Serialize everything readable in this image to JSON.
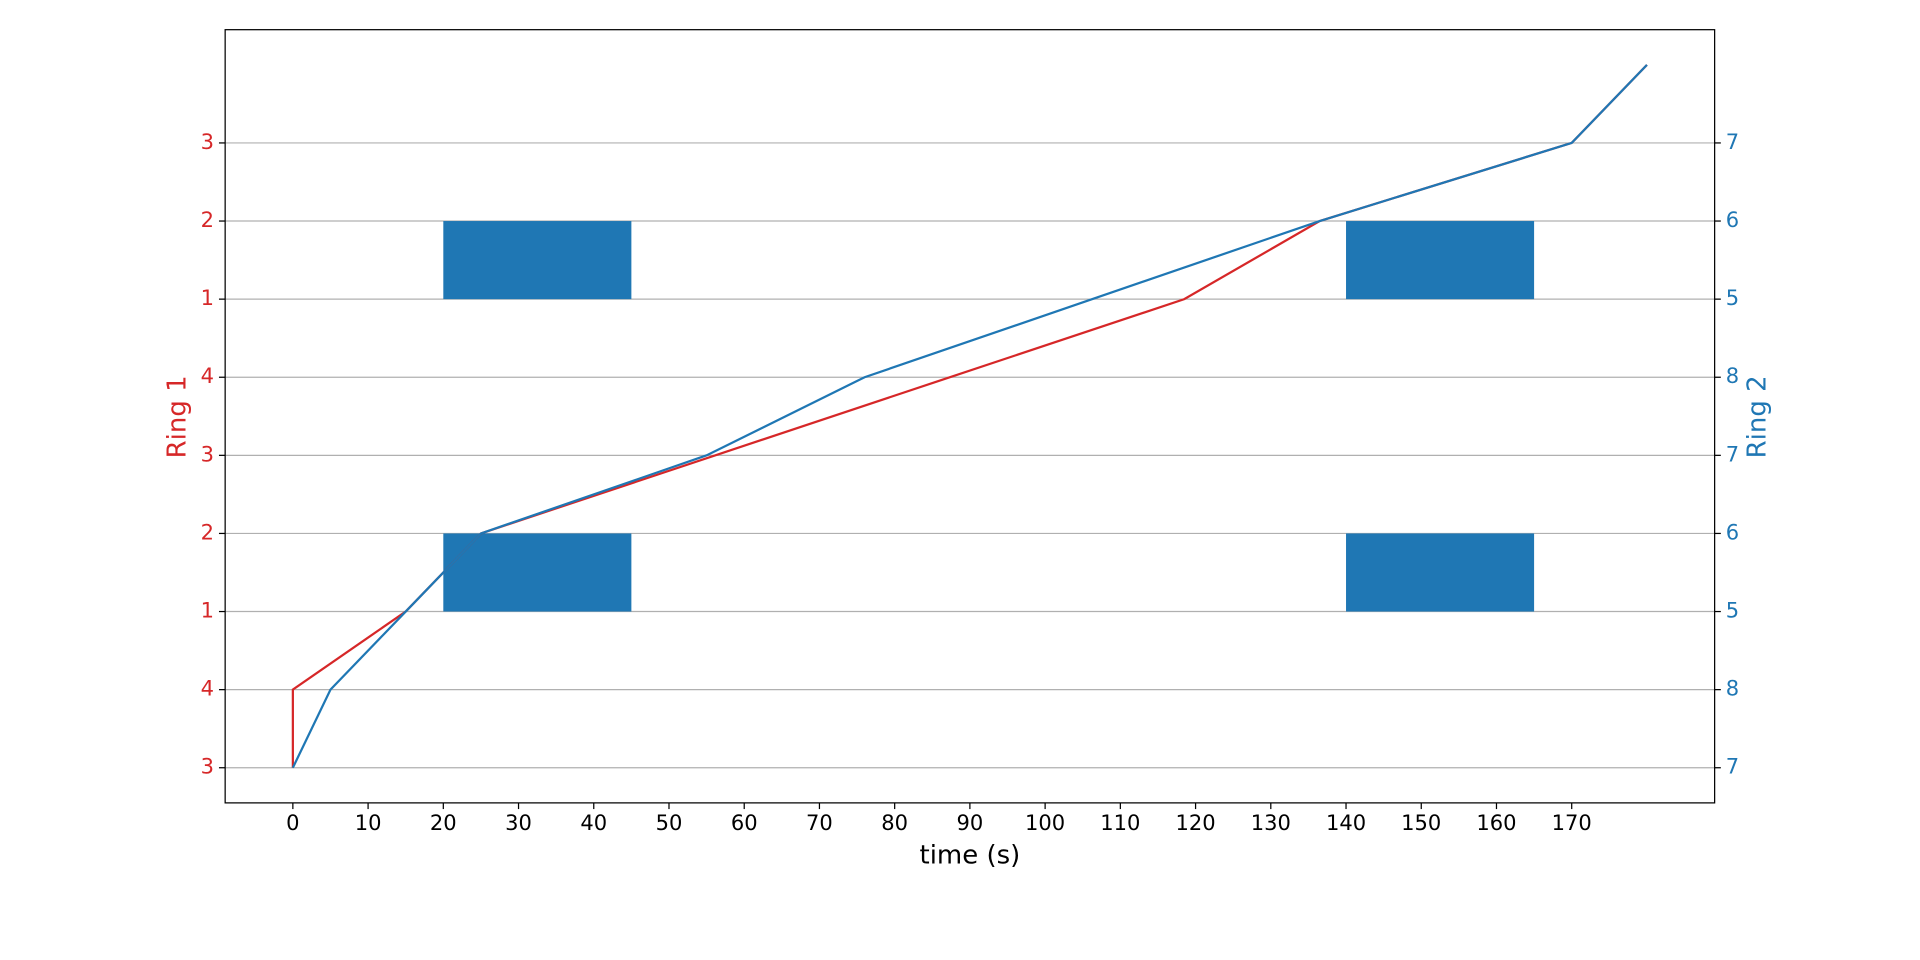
{
  "chart_data": {
    "type": "line",
    "xlabel": "time (s)",
    "ylabel": "Ring 1",
    "y2label": "Ring 2",
    "xlim": [
      -9,
      189
    ],
    "xticks": [
      0,
      10,
      20,
      30,
      40,
      50,
      60,
      70,
      80,
      90,
      100,
      110,
      120,
      130,
      140,
      150,
      160,
      170
    ],
    "ylim": [
      -0.45,
      9.45
    ],
    "yticks": [
      {
        "value": 0,
        "label": "3"
      },
      {
        "value": 1,
        "label": "4"
      },
      {
        "value": 2,
        "label": "1"
      },
      {
        "value": 3,
        "label": "2"
      },
      {
        "value": 4,
        "label": "3"
      },
      {
        "value": 5,
        "label": "4"
      },
      {
        "value": 6,
        "label": "1"
      },
      {
        "value": 7,
        "label": "2"
      },
      {
        "value": 8,
        "label": "3"
      }
    ],
    "y2lim": [
      -0.45,
      9.45
    ],
    "y2ticks": [
      {
        "value": 0,
        "label": "7"
      },
      {
        "value": 1,
        "label": "8"
      },
      {
        "value": 2,
        "label": "5"
      },
      {
        "value": 3,
        "label": "6"
      },
      {
        "value": 4,
        "label": "7"
      },
      {
        "value": 5,
        "label": "8"
      },
      {
        "value": 6,
        "label": "5"
      },
      {
        "value": 7,
        "label": "6"
      },
      {
        "value": 8,
        "label": "7"
      }
    ],
    "grid": true,
    "series": [
      {
        "name": "Ring 1",
        "color": "#d62728",
        "x": [
          0,
          0,
          15,
          25,
          118.5,
          136.5,
          170,
          180
        ],
        "values": [
          0,
          1,
          2,
          3,
          6,
          7,
          8,
          9
        ]
      },
      {
        "name": "Ring 2",
        "color": "#1f77b4",
        "axis": "y2",
        "x": [
          0,
          5,
          15,
          25,
          55,
          76,
          136.5,
          170,
          180
        ],
        "values": [
          0,
          1,
          2,
          3,
          4,
          5,
          7,
          8,
          9
        ]
      }
    ],
    "bar_color": "#1f77b4",
    "bars": [
      {
        "x": 20,
        "width": 25,
        "y": 2,
        "height": 1
      },
      {
        "x": 20,
        "width": 25,
        "y": 6,
        "height": 1
      },
      {
        "x": 140,
        "width": 25,
        "y": 2,
        "height": 1
      },
      {
        "x": 140,
        "width": 25,
        "y": 6,
        "height": 1
      }
    ]
  }
}
